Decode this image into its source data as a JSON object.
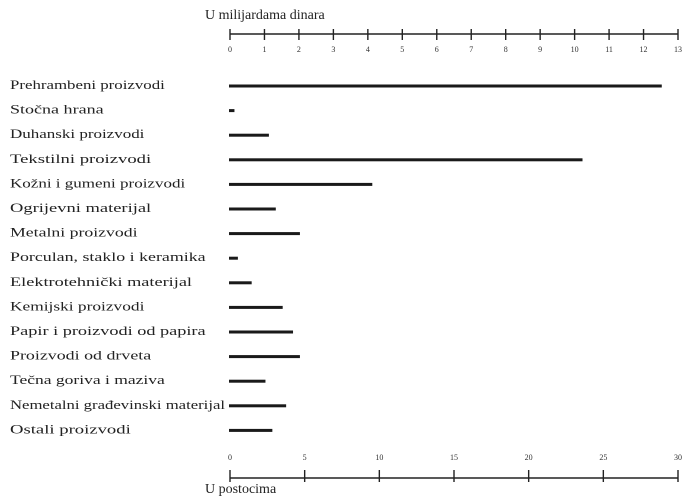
{
  "chart_data": {
    "type": "bar",
    "orientation": "horizontal",
    "xlabel": "U milijardama dinara",
    "x2label": "U postocima",
    "categories": [
      "Prehrambeni proizvodi",
      "Stočna hrana",
      "Duhanski proizvodi",
      "Tekstilni proizvodi",
      "Kožni i gumeni proizvodi",
      "Ogrijevni materijal",
      "Metalni proizvodi",
      "Porculan, staklo i keramika",
      "Elektrotehnički materijal",
      "Kemijski proizvodi",
      "Papir i proizvodi od papira",
      "Proizvodi od drveta",
      "Tečna goriva i maziva",
      "Nemetalni građevinski materijal",
      "Ostali proizvodi"
    ],
    "values": [
      12.5,
      0.1,
      1.1,
      10.2,
      4.1,
      1.3,
      2.0,
      0.2,
      0.6,
      1.5,
      1.8,
      2.0,
      1.0,
      1.6,
      1.2
    ],
    "color": "#1a1a1a",
    "xlim": [
      0,
      13
    ],
    "xticks": [
      0,
      1,
      2,
      3,
      4,
      5,
      6,
      7,
      8,
      9,
      10,
      11,
      12,
      13
    ],
    "x2lim": [
      0,
      30
    ],
    "x2ticks": [
      0,
      5,
      10,
      15,
      20,
      25,
      30
    ]
  }
}
